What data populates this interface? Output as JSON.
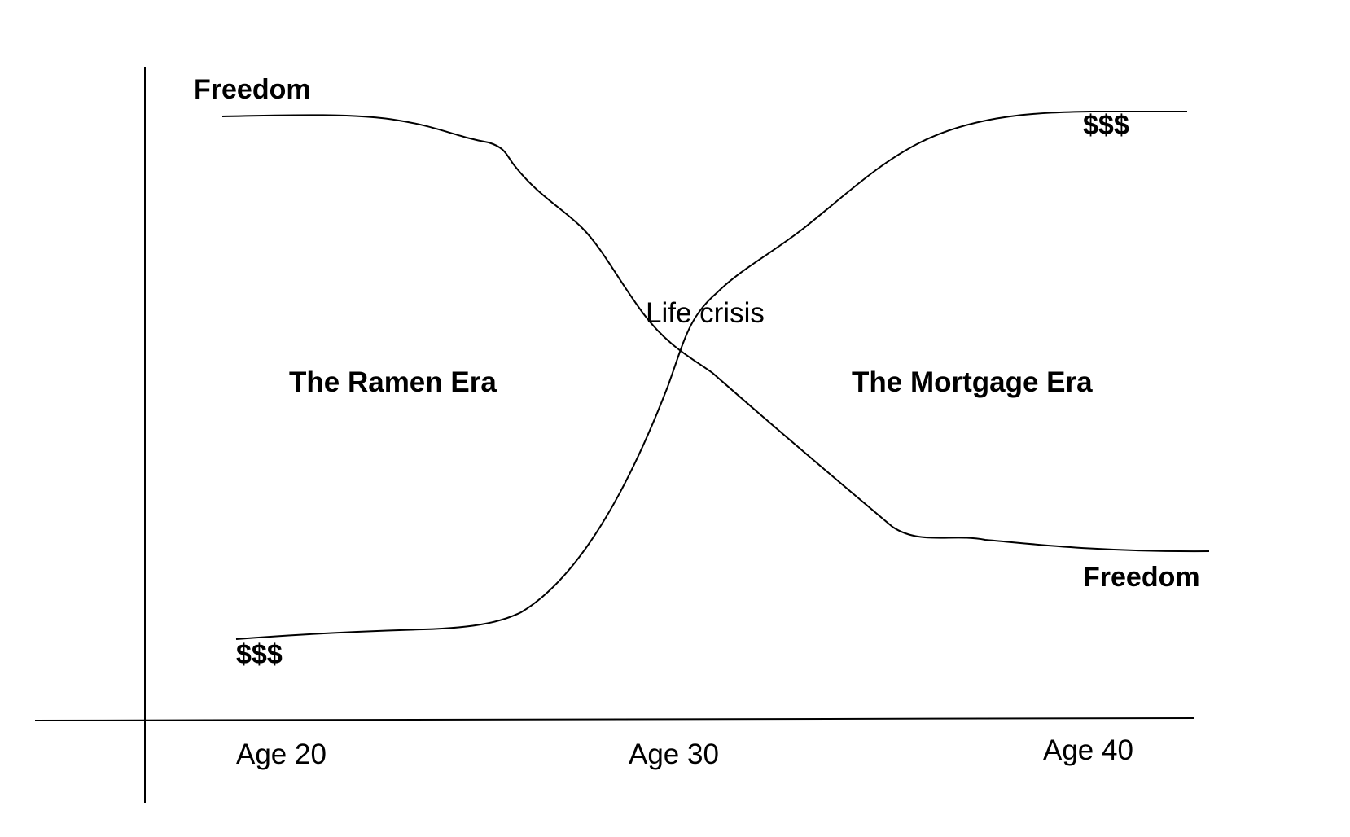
{
  "labels": {
    "freedom_start": "Freedom",
    "money_end": "$$$",
    "ramen_era": "The Ramen Era",
    "life_crisis": "Life crisis",
    "mortgage_era": "The Mortgage Era",
    "freedom_end": "Freedom",
    "money_start": "$$$"
  },
  "x_ticks": [
    "Age 20",
    "Age 30",
    "Age 40"
  ],
  "colors": {
    "line": "#000000",
    "text": "#000000",
    "background": "#ffffff"
  }
}
